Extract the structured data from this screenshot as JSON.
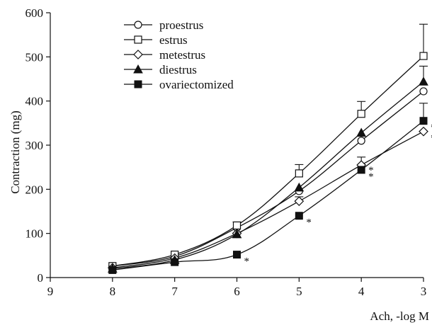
{
  "chart_data": {
    "type": "line",
    "xlabel": "Ach, -log M",
    "ylabel": "Contraction (mg)",
    "xlim": [
      9,
      3
    ],
    "ylim": [
      0,
      600
    ],
    "x_ticks": [
      9,
      8,
      7,
      6,
      5,
      4,
      3
    ],
    "y_ticks": [
      0,
      100,
      200,
      300,
      400,
      500,
      600
    ],
    "grid": false,
    "legend_position": "top-left",
    "x": [
      8,
      7,
      6,
      5,
      4,
      3
    ],
    "series": [
      {
        "name": "proestrus",
        "marker": "circle-open",
        "values": [
          26,
          48,
          113,
          196,
          310,
          422
        ],
        "errors": [
          0,
          0,
          0,
          0,
          0,
          0
        ]
      },
      {
        "name": "estrus",
        "marker": "square-open",
        "values": [
          26,
          52,
          118,
          236,
          371,
          502
        ],
        "errors": [
          0,
          0,
          8,
          20,
          28,
          72
        ]
      },
      {
        "name": "metestrus",
        "marker": "diamond-open",
        "values": [
          22,
          44,
          100,
          173,
          255,
          331
        ],
        "errors": [
          0,
          0,
          0,
          10,
          18,
          0
        ]
      },
      {
        "name": "diestrus",
        "marker": "triangle-filled",
        "values": [
          20,
          40,
          98,
          204,
          328,
          444
        ],
        "errors": [
          0,
          0,
          0,
          0,
          0,
          35
        ]
      },
      {
        "name": "ovariectomized",
        "marker": "square-filled",
        "values": [
          17,
          35,
          52,
          140,
          244,
          355
        ],
        "errors": [
          0,
          0,
          0,
          0,
          0,
          40
        ]
      }
    ],
    "annotations": [
      {
        "text": "*",
        "x": 6,
        "y": 52
      },
      {
        "text": "*",
        "x": 5,
        "y": 140
      },
      {
        "text": "*",
        "x": 4,
        "y": 244
      },
      {
        "text": "*",
        "x": 4,
        "y": 258
      },
      {
        "text": "*",
        "x": 3,
        "y": 331
      },
      {
        "text": "*",
        "x": 3,
        "y": 355
      }
    ]
  }
}
